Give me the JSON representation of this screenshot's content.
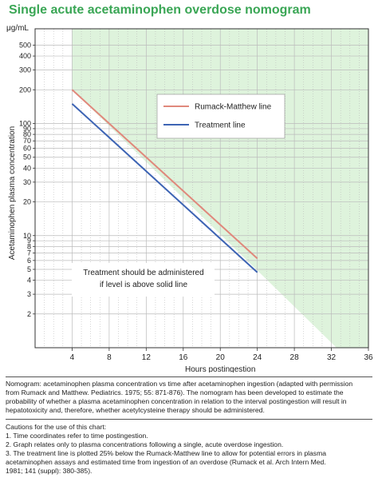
{
  "title": "Single acute acetaminophen overdose nomogram",
  "chart_data": {
    "type": "line",
    "title": "Single acute acetaminophen overdose nomogram",
    "xlabel": "Hours postingestion",
    "ylabel": "Acetaminophen plasma concentration",
    "yunit": "μg/mL",
    "xlim": [
      0,
      36
    ],
    "ylim": [
      1,
      700
    ],
    "yscale": "log",
    "xticks": [
      4,
      8,
      12,
      16,
      20,
      24,
      28,
      32,
      36
    ],
    "yticks": [
      2,
      3,
      4,
      5,
      6,
      7,
      8,
      9,
      10,
      20,
      30,
      40,
      50,
      60,
      70,
      80,
      90,
      100,
      200,
      300,
      400,
      500
    ],
    "series": [
      {
        "name": "Rumack-Matthew line",
        "color": "#e0887c",
        "x": [
          4,
          24
        ],
        "y": [
          200,
          6.25
        ]
      },
      {
        "name": "Treatment line",
        "color": "#3d64b4",
        "x": [
          4,
          24
        ],
        "y": [
          150,
          4.7
        ]
      }
    ],
    "shaded_region": {
      "color": "#def3dc",
      "x": [
        4,
        36
      ],
      "y": [
        200,
        0.88
      ]
    },
    "legend_position": "center-right",
    "annotation": [
      "Treatment should be administered",
      "if level is above solid line"
    ],
    "grid": true
  },
  "colors": {
    "title": "#3aa655",
    "shade": "#def3dc",
    "rumack": "#e0887c",
    "treatment": "#3d64b4"
  },
  "footnote": {
    "nomogram": [
      "Nomogram: acetaminophen plasma concentration vs time after acetaminophen ingestion (adapted with permission",
      "from Rumack and Matthew. Pediatrics. 1975; 55: 871-876). The nomogram has been developed to estimate the",
      "probability of whether a plasma acetaminophen concentration in relation to the interval postingestion will result in",
      "hepatotoxicity and, therefore, whether acetylcysteine therapy should be administered."
    ],
    "cautions": [
      "Cautions for the use of this chart:",
      "1. Time coordinates refer to time postingestion.",
      "2. Graph relates only to plasma concentrations following a single, acute overdose ingestion.",
      "3. The treatment line is plotted 25% below the Rumack-Matthew line to allow for potential errors in plasma",
      "acetaminophen assays and estimated time from ingestion of an overdose (Rumack et al. Arch Intern Med.",
      "1981; 141 (suppl): 380-385)."
    ]
  }
}
